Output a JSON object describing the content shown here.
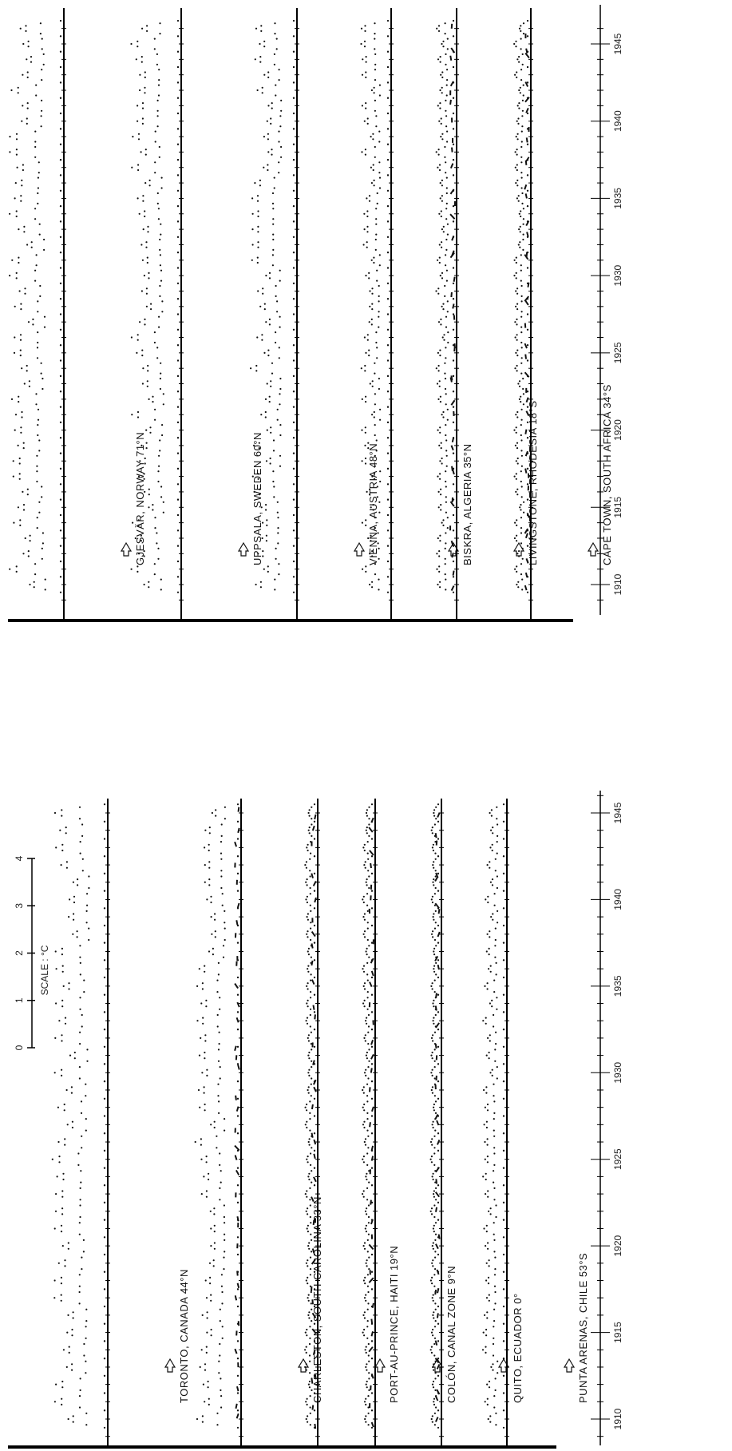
{
  "chart_data": {
    "type": "line",
    "x_axis_ticks": [
      1910,
      1915,
      1920,
      1925,
      1930,
      1935,
      1940,
      1945
    ],
    "xlim": [
      1908,
      1947
    ],
    "scale": {
      "label": "SCALE : °C",
      "ticks": [
        "0",
        "1",
        "2",
        "3",
        "4"
      ]
    },
    "panels": [
      {
        "name": "upper",
        "stations": [
          {
            "label": "GJESVÄR, NORWAY  71°N"
          },
          {
            "label": "UPPSALA, SWEDEN  60°N"
          },
          {
            "label": "VIENNA, AUSTRIA 48°N"
          },
          {
            "label": "BISKRA, ALGERIA  35°N"
          },
          {
            "label": "LIVINGSTONE, RHODESIA 18°S"
          },
          {
            "label": "CAPE TOWN, SOUTH AFRICA  34°S"
          }
        ]
      },
      {
        "name": "lower",
        "stations": [
          {
            "label": "TORONTO, CANADA  44°N"
          },
          {
            "label": "CHARLESTON, SOUTH CAROLINA 33°N"
          },
          {
            "label": "PORT-AU-PRINCE, HAITI 19°N"
          },
          {
            "label": "COLÓN, CANAL ZONE  9°N"
          },
          {
            "label": "QUITO, ECUADOR  0°"
          },
          {
            "label": "PUNTA ARENAS, CHILE  53°S"
          }
        ]
      }
    ]
  }
}
